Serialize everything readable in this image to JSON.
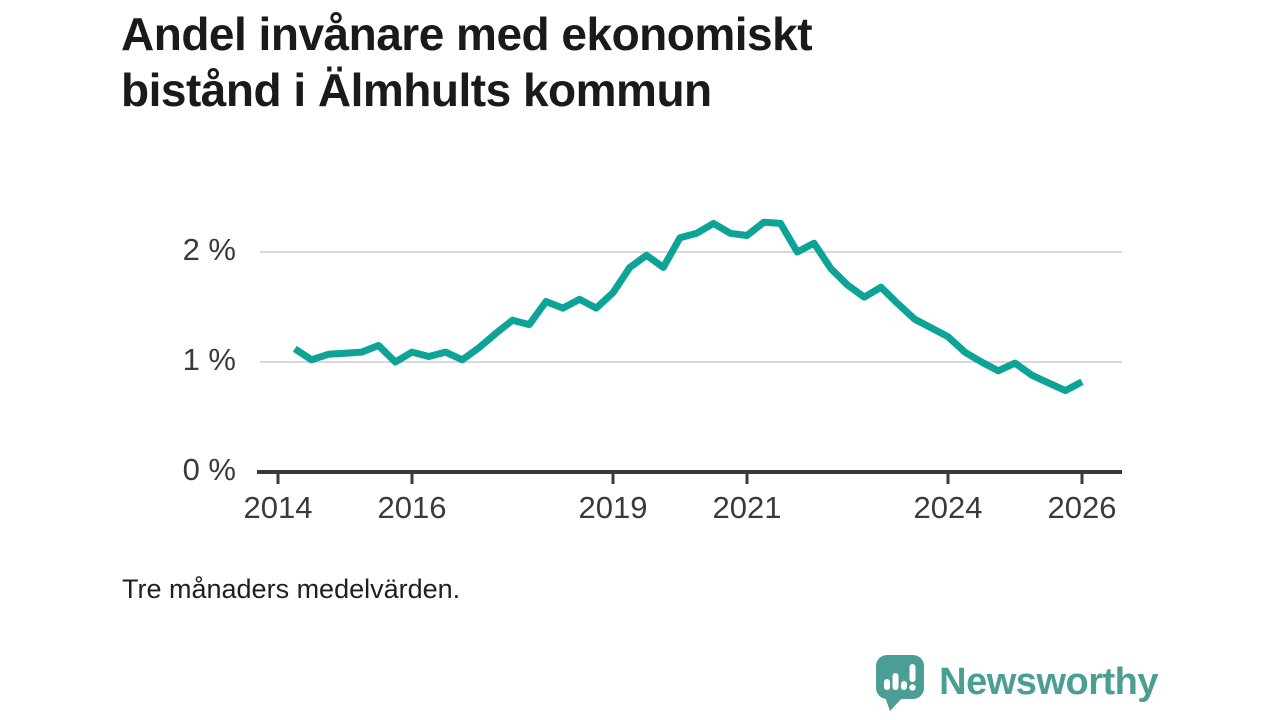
{
  "title": {
    "line1": "Andel invånare med ekonomiskt",
    "line2": "bistånd i Älmhults kommun"
  },
  "footnote": "Tre månaders medelvärden.",
  "branding": {
    "name": "Newsworthy",
    "logo_icon": "newsworthy-speech-bubble-bar-chart-icon",
    "brand_color": "#4a9e93"
  },
  "chart_data": {
    "type": "line",
    "title": "Andel invånare med ekonomiskt bistånd i Älmhults kommun",
    "subtitle": "Tre månaders medelvärden.",
    "xlabel": "",
    "ylabel": "",
    "unit": "%",
    "line_color": "#0da396",
    "grid_color": "#d9d9d9",
    "axis_color": "#3a3a3a",
    "grid": "horizontal-only",
    "legend": "none",
    "xlim": [
      2013.7,
      2026.6
    ],
    "ylim": [
      0,
      2.65
    ],
    "x_ticks": [
      {
        "year": 2014,
        "label": "2014"
      },
      {
        "year": 2016,
        "label": "2016"
      },
      {
        "year": 2019,
        "label": "2019"
      },
      {
        "year": 2021,
        "label": "2021"
      },
      {
        "year": 2024,
        "label": "2024"
      },
      {
        "year": 2026,
        "label": "2026"
      }
    ],
    "y_ticks": [
      {
        "value": 0,
        "label": "0 %"
      },
      {
        "value": 1,
        "label": "1 %"
      },
      {
        "value": 2,
        "label": "2 %"
      }
    ],
    "series": [
      {
        "name": "Andel invånare med ekonomiskt bistånd (%)",
        "x": [
          2014.25,
          2014.5,
          2014.75,
          2015.0,
          2015.25,
          2015.5,
          2015.75,
          2016.0,
          2016.25,
          2016.5,
          2016.75,
          2017.0,
          2017.25,
          2017.5,
          2017.75,
          2018.0,
          2018.25,
          2018.5,
          2018.75,
          2019.0,
          2019.25,
          2019.5,
          2019.75,
          2020.0,
          2020.25,
          2020.5,
          2020.75,
          2021.0,
          2021.25,
          2021.5,
          2021.75,
          2022.0,
          2022.25,
          2022.5,
          2022.75,
          2023.0,
          2023.25,
          2023.5,
          2023.75,
          2024.0,
          2024.25,
          2024.5,
          2024.75,
          2025.0,
          2025.25,
          2025.5,
          2025.75,
          2026.0
        ],
        "values": [
          1.12,
          1.02,
          1.07,
          1.08,
          1.09,
          1.15,
          1.0,
          1.09,
          1.05,
          1.09,
          1.02,
          1.13,
          1.26,
          1.38,
          1.34,
          1.55,
          1.49,
          1.57,
          1.49,
          1.63,
          1.86,
          1.97,
          1.86,
          2.13,
          2.17,
          2.26,
          2.17,
          2.15,
          2.27,
          2.26,
          2.0,
          2.08,
          1.85,
          1.7,
          1.59,
          1.68,
          1.53,
          1.39,
          1.31,
          1.23,
          1.09,
          1.0,
          0.92,
          0.99,
          0.88,
          0.81,
          0.74,
          0.82
        ]
      }
    ]
  }
}
